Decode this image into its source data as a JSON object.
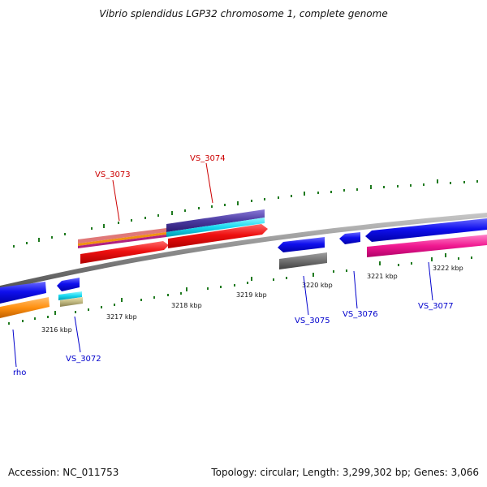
{
  "title": "Vibrio splendidus LGP32 chromosome 1, complete genome",
  "footer": {
    "accession": "Accession: NC_011753",
    "summary": "Topology: circular; Length: 3,299,302 bp; Genes: 3,066"
  },
  "scale": {
    "tick_labels": [
      "3216 kbp",
      "3217 kbp",
      "3218 kbp",
      "3219 kbp",
      "3220 kbp",
      "3221 kbp",
      "3222 kbp"
    ]
  },
  "genes": {
    "rho": "rho",
    "vs3072": "VS_3072",
    "vs3073": "VS_3073",
    "vs3074": "VS_3074",
    "vs3075": "VS_3075",
    "vs3076": "VS_3076",
    "vs3077": "VS_3077"
  },
  "colors": {
    "forward_label": "#cc0000",
    "reverse_label": "#0000cc",
    "backbone": "#8a8a8a",
    "ticks": "#1f7a1f"
  }
}
